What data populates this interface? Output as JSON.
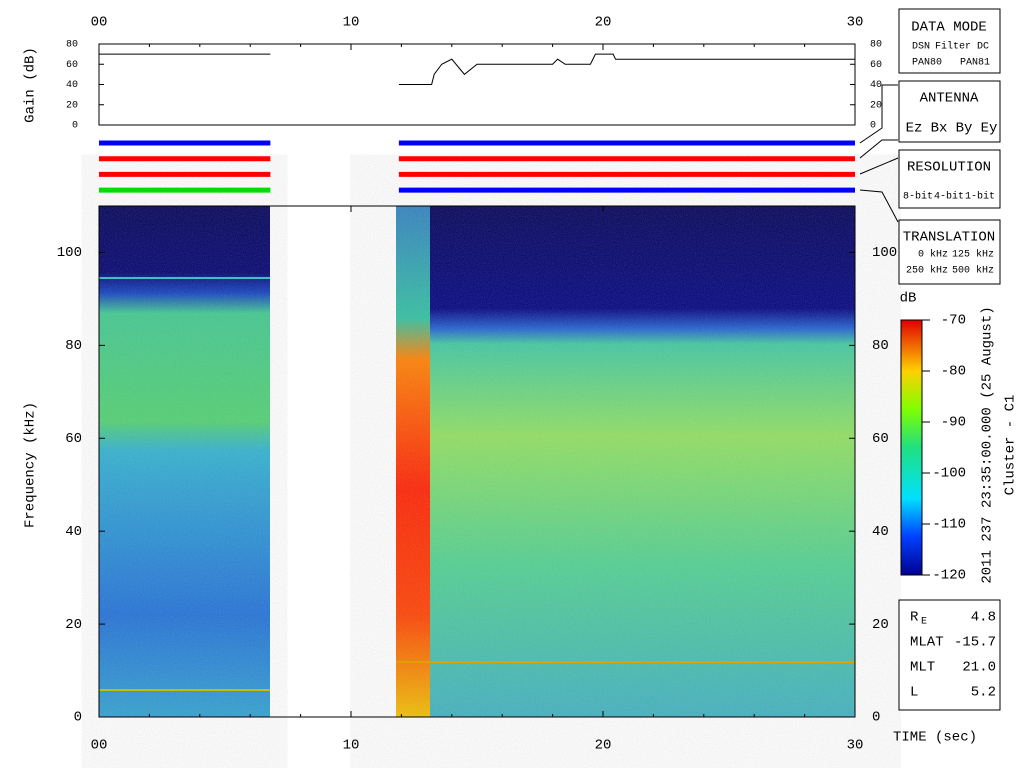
{
  "chart_data": [
    {
      "type": "line",
      "y_label": "Gain (dB)",
      "x": [
        0,
        6.8,
        9,
        11.9,
        13.2,
        13.3,
        13.6,
        14.0,
        14.5,
        15.0,
        18.0,
        18.2,
        18.5,
        19.5,
        19.7,
        20.4,
        20.5,
        30
      ],
      "series": [
        {
          "color": "#000000",
          "values": [
            70,
            70,
            null,
            40,
            40,
            50,
            60,
            65,
            50,
            60,
            60,
            65,
            60,
            60,
            70,
            70,
            65,
            65
          ]
        }
      ],
      "xlim": [
        0,
        30
      ],
      "xticks": [
        {
          "value": 0,
          "label": "00"
        },
        10,
        20,
        30
      ],
      "ylim": [
        0,
        80
      ],
      "yticks": [
        0,
        20,
        40,
        60,
        80
      ]
    },
    {
      "type": "timeline",
      "xlim": [
        0,
        30
      ],
      "segments": [
        {
          "x": [
            0,
            6.8
          ],
          "colors": [
            "#0000ff",
            "#ff0000",
            "#ff0000",
            "#00dd00"
          ]
        },
        {
          "x": [
            11.9,
            30
          ],
          "colors": [
            "#0000ff",
            "#ff0000",
            "#ff0000",
            "#0000ff"
          ]
        }
      ]
    },
    {
      "type": "heatmap",
      "x_label": "TIME (sec)",
      "y_label": "Frequency (kHz)",
      "xlim": [
        0,
        30
      ],
      "xticks": [
        {
          "value": 0,
          "label": "00"
        },
        10,
        20,
        30
      ],
      "ylim": [
        0,
        110
      ],
      "yticks": [
        0,
        20,
        40,
        60,
        80,
        100
      ],
      "colorbar": {
        "label": "dB",
        "lim": [
          -120,
          -70
        ],
        "ticks": [
          -120,
          -110,
          -100,
          -90,
          -80,
          -70
        ]
      },
      "side_label": "2011 237 23:35:00.000 (25 August)",
      "sub_label": "Cluster - C1"
    }
  ],
  "panels": {
    "data_mode": {
      "title": "DATA MODE",
      "items": [
        "DSN",
        "Filter",
        "DC",
        "PAN80",
        "PAN81"
      ]
    },
    "antenna": {
      "title": "ANTENNA",
      "items": [
        "Ez",
        "Bx",
        "By",
        "Ey"
      ]
    },
    "resolution": {
      "title": "RESOLUTION",
      "items": [
        "8-bit",
        "4-bit",
        "1-bit"
      ]
    },
    "translation": {
      "title": "TRANSLATION",
      "items": [
        "0 kHz",
        "125 kHz",
        "250 kHz",
        "500 kHz"
      ]
    }
  },
  "ephemeris": [
    {
      "label": "R",
      "sub": "E",
      "value": "4.8"
    },
    {
      "label": "MLAT",
      "value": "-15.7"
    },
    {
      "label": "MLT",
      "value": "21.0"
    },
    {
      "label": "L",
      "value": "5.2"
    }
  ]
}
